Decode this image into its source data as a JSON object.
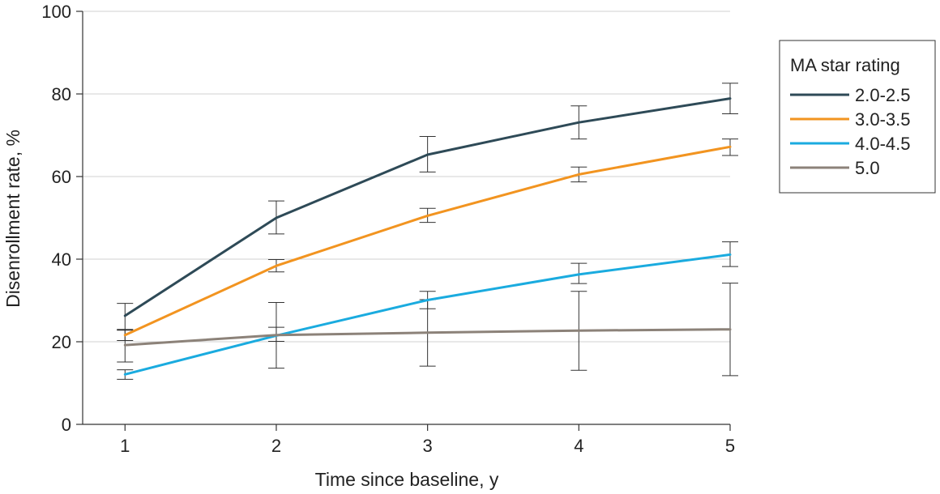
{
  "chart_data": {
    "type": "line",
    "title": "",
    "xlabel": "Time since baseline, y",
    "ylabel": "Disenrollment rate, %",
    "x": [
      1,
      2,
      3,
      4,
      5
    ],
    "xlim": [
      0.72,
      5.0
    ],
    "ylim": [
      0,
      100
    ],
    "yticks": [
      0,
      20,
      40,
      60,
      80,
      100
    ],
    "xticks": [
      1,
      2,
      3,
      4,
      5
    ],
    "grid": "horizontal",
    "legend_position": "right",
    "legend_title": "MA star rating",
    "series": [
      {
        "name": "2.0-2.5",
        "color": "#2e4a57",
        "values": [
          26.3,
          50.0,
          65.3,
          73.1,
          78.9
        ],
        "ci_low": [
          22.9,
          46.1,
          61.1,
          69.1,
          75.2
        ],
        "ci_high": [
          29.3,
          54.1,
          69.7,
          77.1,
          82.6
        ]
      },
      {
        "name": "3.0-3.5",
        "color": "#f29420",
        "values": [
          21.6,
          38.4,
          50.5,
          60.5,
          67.2
        ],
        "ci_low": [
          20.3,
          36.9,
          48.9,
          58.7,
          65.1
        ],
        "ci_high": [
          22.8,
          39.9,
          52.3,
          62.3,
          69.1
        ]
      },
      {
        "name": "4.0-4.5",
        "color": "#1aabdf",
        "values": [
          12.1,
          21.5,
          30.1,
          36.3,
          41.1
        ],
        "ci_low": [
          10.9,
          20.1,
          28.0,
          34.1,
          38.2
        ],
        "ci_high": [
          13.2,
          23.5,
          32.2,
          39.0,
          44.2
        ]
      },
      {
        "name": "5.0",
        "color": "#8c8279",
        "values": [
          19.2,
          21.6,
          22.2,
          22.7,
          23.0
        ],
        "ci_low": [
          15.1,
          13.6,
          14.1,
          13.1,
          11.8
        ],
        "ci_high": [
          23.0,
          29.5,
          30.2,
          32.2,
          34.2
        ]
      }
    ]
  }
}
